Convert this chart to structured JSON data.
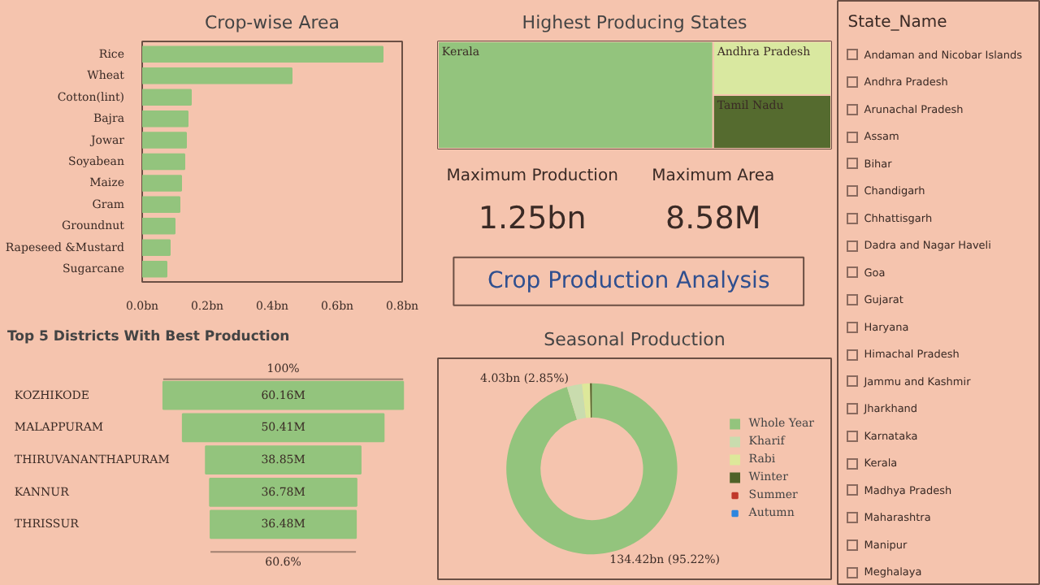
{
  "chart_data": [
    {
      "type": "bar",
      "title": "Crop-wise Area",
      "orientation": "horizontal",
      "categories": [
        "Rice",
        "Wheat",
        "Cotton(lint)",
        "Bajra",
        "Jowar",
        "Soyabean",
        "Maize",
        "Gram",
        "Groundnut",
        "Rapeseed &Mustard",
        "Sugarcane"
      ],
      "values": [
        0.74,
        0.46,
        0.15,
        0.14,
        0.135,
        0.13,
        0.12,
        0.115,
        0.1,
        0.085,
        0.075
      ],
      "color": "#93c47d",
      "xlim": [
        0,
        0.8
      ],
      "xticks": [
        {
          "value": 0,
          "label": "0.0bn"
        },
        {
          "value": 0.2,
          "label": "0.2bn"
        },
        {
          "value": 0.4,
          "label": "0.4bn"
        },
        {
          "value": 0.6,
          "label": "0.6bn"
        },
        {
          "value": 0.8,
          "label": "0.8bn"
        }
      ]
    },
    {
      "type": "other",
      "title": "Top 5 Districts With Best Production",
      "categories": [
        "KOZHIKODE",
        "MALAPPURAM",
        "THIRUVANANTHAPURAM",
        "KANNUR",
        "THRISSUR"
      ],
      "values": [
        60.16,
        50.41,
        38.85,
        36.78,
        36.48
      ],
      "value_labels": [
        "60.16M",
        "50.41M",
        "38.85M",
        "36.78M",
        "36.48M"
      ],
      "color": "#93c47d",
      "annotations": [
        "100%",
        "60.6%"
      ]
    },
    {
      "type": "other",
      "title": "Highest Producing States",
      "categories": [
        "Kerala",
        "Andhra Pradesh",
        "Tamil Nadu"
      ],
      "colors": [
        "#93c47d",
        "#d9e8a0",
        "#556b2f"
      ]
    },
    {
      "type": "other",
      "title": "Crop Production Analysis",
      "annotations": [
        "Maximum Production",
        "1.25bn",
        "Maximum Area",
        "8.58M"
      ]
    },
    {
      "type": "donut",
      "title": "Seasonal Production",
      "categories": [
        "Whole Year",
        "Kharif",
        "Rabi",
        "Winter",
        "Summer",
        "Autumn"
      ],
      "values": [
        95.22,
        2.85,
        1.5,
        0.33,
        null,
        null
      ],
      "colors": [
        "#93c47d",
        "#c9dcae",
        "#dde89a",
        "#4f6228",
        "#c0392b",
        "#2e86de"
      ],
      "value_labels": [
        "134.42bn (95.22%)",
        "4.03bn (2.85%)",
        null,
        null,
        null,
        null
      ],
      "legend": "right"
    },
    {
      "type": "other",
      "title": "State_Name",
      "categories": [
        "Andaman and Nicobar Islands",
        "Andhra Pradesh",
        "Arunachal Pradesh",
        "Assam",
        "Bihar",
        "Chandigarh",
        "Chhattisgarh",
        "Dadra and Nagar Haveli",
        "Goa",
        "Gujarat",
        "Haryana",
        "Himachal Pradesh",
        "Jammu and Kashmir",
        "Jharkhand",
        "Karnataka",
        "Kerala",
        "Madhya Pradesh",
        "Maharashtra",
        "Manipur",
        "Meghalaya"
      ]
    }
  ]
}
